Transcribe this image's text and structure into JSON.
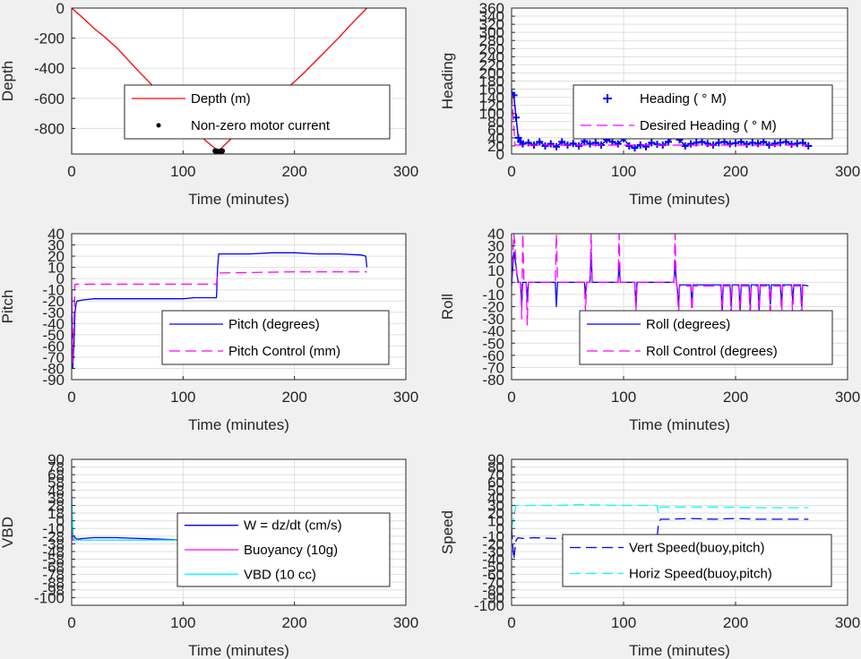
{
  "chart_data": [
    {
      "id": "depth",
      "type": "line",
      "xlabel": "Time (minutes)",
      "ylabel": "Depth",
      "xlim": [
        0,
        300
      ],
      "ylim": [
        -970,
        0
      ],
      "xticks": [
        0,
        100,
        200,
        300
      ],
      "yticks": [
        0,
        -200,
        -400,
        -600,
        -800
      ],
      "grid": true,
      "legend_position": "center",
      "series": [
        {
          "name": "Depth (m)",
          "color": "#ff0000",
          "style": "solid",
          "x": [
            0,
            10,
            20,
            30,
            40,
            50,
            60,
            70,
            80,
            90,
            100,
            110,
            120,
            130,
            132,
            140,
            150,
            160,
            170,
            180,
            190,
            200,
            210,
            220,
            230,
            240,
            250,
            265
          ],
          "y": [
            0,
            -65,
            -135,
            -195,
            -260,
            -340,
            -420,
            -495,
            -575,
            -650,
            -720,
            -800,
            -880,
            -940,
            -950,
            -890,
            -820,
            -760,
            -690,
            -625,
            -555,
            -490,
            -420,
            -345,
            -270,
            -195,
            -115,
            0
          ]
        },
        {
          "name": "Non-zero motor current",
          "color": "#000000",
          "style": "marker",
          "x": [
            129,
            130,
            131,
            132,
            133,
            134,
            135
          ],
          "y": [
            -950,
            -952,
            -955,
            -957,
            -955,
            -952,
            -950
          ]
        }
      ]
    },
    {
      "id": "heading",
      "type": "line",
      "xlabel": "Time (minutes)",
      "ylabel": "Heading",
      "xlim": [
        0,
        300
      ],
      "ylim": [
        0,
        360
      ],
      "xticks": [
        0,
        100,
        200,
        300
      ],
      "yticks": [
        0,
        20,
        40,
        60,
        80,
        100,
        120,
        140,
        160,
        180,
        200,
        220,
        240,
        260,
        280,
        300,
        320,
        340,
        360
      ],
      "grid": true,
      "legend_position": "center-right",
      "series": [
        {
          "name": "Heading (   ° M)",
          "color": "#0000ff",
          "style": "plus",
          "x": [
            0,
            2,
            4,
            6,
            8,
            10,
            15,
            20,
            25,
            30,
            35,
            40,
            45,
            50,
            55,
            60,
            65,
            70,
            75,
            80,
            85,
            90,
            95,
            100,
            105,
            110,
            115,
            120,
            125,
            130,
            135,
            140,
            145,
            150,
            155,
            160,
            165,
            170,
            175,
            180,
            185,
            190,
            195,
            200,
            205,
            210,
            215,
            220,
            225,
            230,
            235,
            240,
            245,
            250,
            255,
            260,
            265
          ],
          "y": [
            150,
            145,
            90,
            40,
            30,
            25,
            28,
            22,
            30,
            20,
            25,
            18,
            30,
            22,
            26,
            20,
            32,
            25,
            28,
            22,
            35,
            30,
            25,
            38,
            20,
            15,
            22,
            18,
            28,
            24,
            22,
            30,
            45,
            35,
            20,
            25,
            28,
            30,
            26,
            22,
            28,
            30,
            25,
            27,
            30,
            24,
            28,
            26,
            30,
            22,
            26,
            28,
            30,
            24,
            26,
            28,
            20
          ]
        },
        {
          "name": "Desired Heading (     ° M)",
          "color": "#ff00ff",
          "style": "dash",
          "x": [
            0,
            3,
            265
          ],
          "y": [
            150,
            22,
            22
          ]
        }
      ]
    },
    {
      "id": "pitch",
      "type": "line",
      "xlabel": "Time (minutes)",
      "ylabel": "Pitch",
      "xlim": [
        0,
        300
      ],
      "ylim": [
        -90,
        40
      ],
      "xticks": [
        0,
        100,
        200,
        300
      ],
      "yticks": [
        40,
        30,
        20,
        10,
        0,
        -10,
        -20,
        -30,
        -40,
        -50,
        -60,
        -70,
        -80,
        -90
      ],
      "grid": true,
      "legend_position": "center-right",
      "series": [
        {
          "name": "Pitch (degrees)",
          "color": "#0000ff",
          "style": "solid",
          "x": [
            0,
            1,
            2,
            3,
            4,
            5,
            10,
            20,
            40,
            60,
            80,
            100,
            110,
            120,
            130,
            131,
            132,
            140,
            160,
            180,
            200,
            220,
            240,
            260,
            264,
            265
          ],
          "y": [
            -10,
            -80,
            -60,
            -30,
            -22,
            -20,
            -19,
            -18,
            -18,
            -18,
            -18,
            -18,
            -17,
            -17,
            -17,
            10,
            22,
            22,
            22,
            23,
            23,
            22,
            22,
            21,
            20,
            10
          ]
        },
        {
          "name": "Pitch Control (mm)",
          "color": "#ff00ff",
          "style": "dash",
          "x": [
            0,
            1,
            3,
            5,
            130,
            131,
            133,
            200,
            265
          ],
          "y": [
            -10,
            -75,
            -5,
            -5,
            -5,
            5,
            5,
            6,
            6
          ]
        }
      ]
    },
    {
      "id": "roll",
      "type": "line",
      "xlabel": "Time (minutes)",
      "ylabel": "Roll",
      "xlim": [
        0,
        300
      ],
      "ylim": [
        -80,
        40
      ],
      "xticks": [
        0,
        100,
        200,
        300
      ],
      "yticks": [
        40,
        30,
        20,
        10,
        0,
        -10,
        -20,
        -30,
        -40,
        -50,
        -60,
        -70,
        -80
      ],
      "grid": true,
      "legend_position": "center-right",
      "series": [
        {
          "name": "Roll (degrees)",
          "color": "#0000ff",
          "style": "solid",
          "x": [
            0,
            2,
            3,
            5,
            6,
            8,
            9,
            10,
            11,
            13,
            14,
            15,
            39,
            40,
            41,
            65,
            66,
            67,
            70,
            71,
            72,
            95,
            96,
            97,
            110,
            111,
            112,
            145,
            146,
            147,
            148,
            149,
            150,
            160,
            161,
            162,
            187,
            188,
            189,
            195,
            196,
            197,
            203,
            204,
            205,
            212,
            213,
            214,
            220,
            221,
            222,
            230,
            231,
            232,
            240,
            241,
            242,
            250,
            251,
            252,
            258,
            259,
            260,
            265
          ],
          "y": [
            -3,
            25,
            20,
            5,
            0,
            0,
            -20,
            0,
            0,
            0,
            -15,
            0,
            0,
            -20,
            0,
            0,
            -10,
            0,
            0,
            25,
            0,
            0,
            15,
            0,
            0,
            -20,
            0,
            0,
            18,
            0,
            -5,
            -20,
            -2,
            -2,
            -20,
            -2,
            -2,
            -25,
            -2,
            -2,
            -20,
            -2,
            -2,
            -25,
            -2,
            -2,
            -20,
            -2,
            -2,
            -25,
            -2,
            -2,
            -18,
            -2,
            -2,
            -20,
            -2,
            -2,
            -15,
            -2,
            -2,
            -20,
            -2,
            -3
          ]
        },
        {
          "name": "Roll Control (degrees)",
          "color": "#ff00ff",
          "style": "dash",
          "x": [
            0,
            2,
            3,
            5,
            6,
            8,
            9,
            10,
            11,
            13,
            14,
            15,
            39,
            40,
            41,
            65,
            66,
            67,
            70,
            71,
            72,
            95,
            96,
            97,
            110,
            111,
            112,
            145,
            146,
            147,
            148,
            149,
            150,
            160,
            161,
            162,
            187,
            188,
            189,
            195,
            196,
            197,
            203,
            204,
            205,
            212,
            213,
            214,
            220,
            221,
            222,
            230,
            231,
            232,
            240,
            241,
            242,
            250,
            251,
            252,
            258,
            259,
            260,
            265
          ],
          "y": [
            0,
            40,
            30,
            0,
            0,
            0,
            -30,
            40,
            0,
            0,
            -35,
            0,
            0,
            40,
            0,
            0,
            -25,
            0,
            0,
            40,
            0,
            0,
            40,
            0,
            0,
            -25,
            0,
            0,
            40,
            0,
            -5,
            -30,
            -3,
            -3,
            -30,
            -3,
            -3,
            -30,
            -3,
            -3,
            -30,
            -3,
            -3,
            -30,
            -3,
            -3,
            -30,
            -3,
            -3,
            -30,
            -3,
            -3,
            -30,
            -3,
            -3,
            -30,
            -3,
            -3,
            -30,
            -3,
            -3,
            -30,
            -3,
            -3
          ]
        }
      ]
    },
    {
      "id": "vbd",
      "type": "line",
      "xlabel": "Time (minutes)",
      "ylabel": "VBD",
      "xlim": [
        0,
        300
      ],
      "ylim": [
        -100,
        90
      ],
      "xticks": [
        0,
        100,
        200,
        300
      ],
      "yticks": [
        90,
        80,
        70,
        60,
        50,
        40,
        30,
        20,
        10,
        0,
        -10,
        -20,
        -30,
        -40,
        -50,
        -60,
        -70,
        -80,
        -90,
        -100
      ],
      "ytick_labels_visible": [
        "90",
        "78",
        "68",
        "58",
        "48",
        "38",
        "28",
        "18",
        "0",
        "-10",
        "-28",
        "-38",
        "-48",
        "-58",
        "-68",
        "-78",
        "-88",
        "-98",
        "-100"
      ],
      "grid": true,
      "legend_position": "center-right",
      "series": [
        {
          "name": "W = dz/dt (cm/s)",
          "color": "#0000ff",
          "style": "solid",
          "x": [
            0,
            1,
            2,
            3,
            5,
            10,
            20,
            40,
            60,
            80,
            100,
            120,
            130,
            131,
            133,
            140,
            160,
            180,
            200,
            220,
            240,
            260,
            265
          ],
          "y": [
            0,
            -5,
            -10,
            -12,
            -14,
            -13,
            -12,
            -12,
            -13,
            -14,
            -15,
            -15,
            -14,
            5,
            12,
            12,
            13,
            13,
            13,
            12,
            13,
            12,
            12
          ]
        },
        {
          "name": "Buoyancy (10g)",
          "color": "#ff00ff",
          "style": "solid",
          "x": [
            0,
            1,
            3,
            130,
            131,
            133,
            265
          ],
          "y": [
            0,
            -15,
            -15,
            -15,
            5,
            14,
            14
          ]
        },
        {
          "name": "VBD (10 cc)",
          "color": "#00ffff",
          "style": "solid",
          "x": [
            0,
            1,
            2,
            3,
            130,
            131,
            133,
            265
          ],
          "y": [
            45,
            0,
            -14,
            -15,
            -15,
            5,
            15,
            15
          ]
        }
      ]
    },
    {
      "id": "speed",
      "type": "line",
      "xlabel": "Time (minutes)",
      "ylabel": "Speed",
      "xlim": [
        0,
        300
      ],
      "ylim": [
        -100,
        90
      ],
      "xticks": [
        0,
        100,
        200,
        300
      ],
      "yticks": [
        90,
        80,
        70,
        60,
        50,
        40,
        30,
        20,
        10,
        0,
        -10,
        -20,
        -30,
        -40,
        -50,
        -60,
        -70,
        -80,
        -90,
        -100
      ],
      "grid": true,
      "legend_position": "bottom-right",
      "series": [
        {
          "name": "Vert Speed(buoy,pitch)",
          "color": "#0000ff",
          "style": "dash",
          "x": [
            0,
            2,
            4,
            6,
            10,
            20,
            40,
            60,
            80,
            100,
            120,
            130,
            131,
            133,
            140,
            160,
            180,
            200,
            220,
            240,
            265
          ],
          "y": [
            0,
            -40,
            -15,
            -12,
            -13,
            -12,
            -13,
            -13,
            -12,
            -13,
            -12,
            -12,
            5,
            12,
            12,
            13,
            12,
            13,
            12,
            12,
            12
          ]
        },
        {
          "name": "Horiz Speed(buoy,pitch)",
          "color": "#00ffff",
          "style": "dash",
          "x": [
            0,
            2,
            4,
            10,
            40,
            60,
            100,
            120,
            130,
            131,
            133,
            140,
            180,
            220,
            265
          ],
          "y": [
            0,
            15,
            30,
            30,
            30,
            31,
            30,
            30,
            30,
            20,
            28,
            28,
            28,
            27,
            27
          ]
        }
      ]
    }
  ]
}
